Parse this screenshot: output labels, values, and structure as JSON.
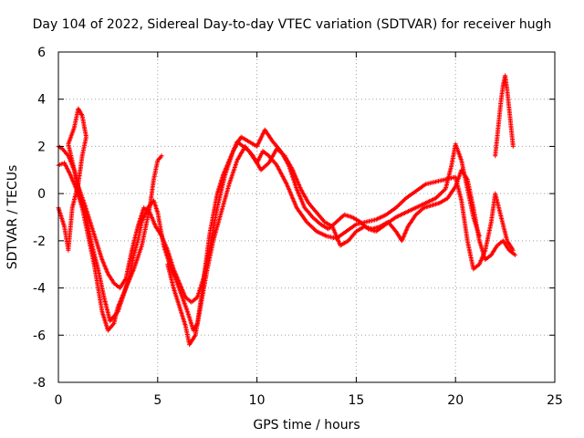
{
  "chart_data": {
    "type": "scatter",
    "title": "Day 104 of 2022, Sidereal Day-to-day VTEC variation (SDTVAR) for receiver hugh",
    "xlabel": "GPS time / hours",
    "ylabel": "SDTVAR / TECUs",
    "xlim": [
      0,
      25
    ],
    "ylim": [
      -8,
      6
    ],
    "x_ticks": [
      "0",
      "5",
      "10",
      "15",
      "20",
      "25"
    ],
    "y_ticks": [
      "-8",
      "-6",
      "-4",
      "-2",
      "0",
      "2",
      "4",
      "6"
    ],
    "x_tick_values": [
      0,
      5,
      10,
      15,
      20,
      25
    ],
    "y_tick_values": [
      -8,
      -6,
      -4,
      -2,
      0,
      2,
      4,
      6
    ],
    "grid": true,
    "marker": "+",
    "color": "#ff0000",
    "series": [
      {
        "name": "trace-a",
        "points": [
          [
            0.0,
            1.2
          ],
          [
            0.3,
            1.3
          ],
          [
            0.6,
            0.8
          ],
          [
            0.9,
            0.2
          ],
          [
            1.2,
            -0.6
          ],
          [
            1.5,
            -1.8
          ],
          [
            1.8,
            -3.0
          ],
          [
            2.0,
            -4.0
          ],
          [
            2.2,
            -5.0
          ],
          [
            2.5,
            -5.8
          ],
          [
            2.8,
            -5.5
          ],
          [
            3.0,
            -4.8
          ],
          [
            3.3,
            -4.2
          ],
          [
            3.6,
            -3.5
          ],
          [
            3.8,
            -2.6
          ],
          [
            4.0,
            -2.0
          ],
          [
            4.2,
            -1.2
          ],
          [
            4.5,
            -0.6
          ],
          [
            4.8,
            -0.3
          ],
          [
            5.0,
            -0.8
          ],
          [
            5.3,
            -2.2
          ],
          [
            5.6,
            -3.0
          ],
          [
            5.9,
            -3.6
          ],
          [
            6.2,
            -4.3
          ],
          [
            6.5,
            -5.0
          ],
          [
            6.8,
            -5.8
          ],
          [
            7.0,
            -5.5
          ],
          [
            7.3,
            -3.8
          ],
          [
            7.6,
            -1.8
          ],
          [
            8.0,
            0.0
          ],
          [
            8.3,
            0.8
          ],
          [
            8.6,
            1.4
          ],
          [
            9.0,
            2.2
          ],
          [
            9.3,
            2.0
          ],
          [
            9.6,
            1.8
          ],
          [
            10.0,
            1.3
          ],
          [
            10.3,
            1.8
          ],
          [
            10.6,
            1.6
          ],
          [
            11.0,
            1.2
          ],
          [
            11.5,
            0.4
          ],
          [
            12.0,
            -0.6
          ],
          [
            12.5,
            -1.2
          ],
          [
            13.0,
            -1.6
          ],
          [
            13.5,
            -1.8
          ],
          [
            14.0,
            -1.9
          ],
          [
            14.5,
            -1.6
          ],
          [
            15.0,
            -1.3
          ],
          [
            15.5,
            -1.2
          ],
          [
            16.0,
            -1.1
          ],
          [
            16.5,
            -0.9
          ],
          [
            17.0,
            -0.6
          ],
          [
            17.5,
            -0.2
          ],
          [
            18.0,
            0.1
          ],
          [
            18.5,
            0.4
          ],
          [
            19.0,
            0.5
          ],
          [
            19.5,
            0.6
          ],
          [
            20.0,
            0.7
          ],
          [
            20.3,
            -0.3
          ],
          [
            20.6,
            -2.0
          ],
          [
            20.9,
            -3.2
          ],
          [
            21.2,
            -3.0
          ],
          [
            21.5,
            -2.4
          ],
          [
            21.8,
            -1.2
          ],
          [
            22.0,
            0.0
          ],
          [
            22.3,
            -1.0
          ],
          [
            22.6,
            -2.0
          ],
          [
            22.9,
            -2.4
          ]
        ]
      },
      {
        "name": "trace-b",
        "points": [
          [
            0.0,
            2.0
          ],
          [
            0.2,
            1.9
          ],
          [
            0.5,
            1.6
          ],
          [
            0.8,
            1.0
          ],
          [
            1.0,
            0.3
          ],
          [
            1.3,
            -0.4
          ],
          [
            1.6,
            -1.2
          ],
          [
            1.9,
            -2.0
          ],
          [
            2.2,
            -2.8
          ],
          [
            2.5,
            -3.4
          ],
          [
            2.8,
            -3.8
          ],
          [
            3.1,
            -4.0
          ],
          [
            3.4,
            -3.6
          ],
          [
            3.7,
            -2.4
          ],
          [
            4.0,
            -1.4
          ],
          [
            4.3,
            -0.6
          ],
          [
            4.6,
            -0.8
          ],
          [
            4.9,
            -1.4
          ],
          [
            5.2,
            -1.8
          ],
          [
            5.5,
            -2.4
          ],
          [
            5.8,
            -3.2
          ],
          [
            6.1,
            -3.8
          ],
          [
            6.4,
            -4.4
          ],
          [
            6.7,
            -4.6
          ],
          [
            7.0,
            -4.4
          ],
          [
            7.3,
            -3.6
          ],
          [
            7.6,
            -2.4
          ],
          [
            8.0,
            -0.6
          ],
          [
            8.4,
            0.8
          ],
          [
            8.8,
            1.8
          ],
          [
            9.2,
            2.4
          ],
          [
            9.6,
            2.2
          ],
          [
            10.0,
            2.0
          ],
          [
            10.4,
            2.7
          ],
          [
            10.8,
            2.2
          ],
          [
            11.2,
            1.8
          ],
          [
            11.6,
            1.2
          ],
          [
            12.0,
            0.2
          ],
          [
            12.4,
            -0.6
          ],
          [
            12.8,
            -1.0
          ],
          [
            13.2,
            -1.3
          ],
          [
            13.6,
            -1.5
          ],
          [
            14.0,
            -1.2
          ],
          [
            14.4,
            -0.9
          ],
          [
            14.8,
            -1.0
          ],
          [
            15.2,
            -1.2
          ],
          [
            15.6,
            -1.5
          ],
          [
            16.0,
            -1.6
          ],
          [
            16.5,
            -1.3
          ],
          [
            17.0,
            -1.0
          ],
          [
            17.5,
            -0.8
          ],
          [
            18.0,
            -0.6
          ],
          [
            18.5,
            -0.4
          ],
          [
            19.0,
            -0.2
          ],
          [
            19.5,
            0.2
          ],
          [
            19.8,
            1.2
          ],
          [
            20.0,
            2.1
          ],
          [
            20.3,
            1.4
          ],
          [
            20.6,
            0.2
          ],
          [
            20.9,
            -1.0
          ],
          [
            21.2,
            -1.8
          ]
        ]
      },
      {
        "name": "trace-c",
        "points": [
          [
            0.0,
            -0.6
          ],
          [
            0.3,
            -1.4
          ],
          [
            0.5,
            -2.4
          ],
          [
            0.7,
            -0.6
          ],
          [
            1.0,
            0.4
          ],
          [
            1.2,
            1.6
          ],
          [
            1.4,
            2.4
          ],
          [
            1.2,
            3.3
          ],
          [
            1.0,
            3.6
          ],
          [
            0.8,
            2.8
          ],
          [
            0.5,
            2.1
          ],
          [
            0.8,
            1.0
          ],
          [
            1.1,
            -0.1
          ],
          [
            1.4,
            -1.0
          ],
          [
            1.7,
            -2.2
          ],
          [
            2.0,
            -3.2
          ],
          [
            2.3,
            -4.4
          ],
          [
            2.6,
            -5.4
          ],
          [
            3.0,
            -5.0
          ],
          [
            3.4,
            -4.0
          ],
          [
            3.8,
            -3.2
          ],
          [
            4.2,
            -2.2
          ],
          [
            4.6,
            -0.6
          ],
          [
            4.8,
            0.6
          ],
          [
            5.0,
            1.4
          ],
          [
            5.2,
            1.6
          ]
        ]
      },
      {
        "name": "trace-d",
        "points": [
          [
            5.5,
            -3.0
          ],
          [
            5.8,
            -4.0
          ],
          [
            6.1,
            -4.8
          ],
          [
            6.4,
            -5.6
          ],
          [
            6.6,
            -6.4
          ],
          [
            6.9,
            -6.0
          ],
          [
            7.2,
            -4.6
          ],
          [
            7.5,
            -3.2
          ],
          [
            7.8,
            -2.0
          ],
          [
            8.2,
            -0.8
          ],
          [
            8.6,
            0.4
          ],
          [
            9.0,
            1.4
          ],
          [
            9.4,
            2.0
          ],
          [
            9.8,
            1.6
          ],
          [
            10.2,
            1.0
          ],
          [
            10.6,
            1.3
          ],
          [
            11.0,
            1.9
          ],
          [
            11.4,
            1.6
          ],
          [
            11.8,
            1.0
          ],
          [
            12.2,
            0.2
          ],
          [
            12.6,
            -0.4
          ],
          [
            13.0,
            -0.8
          ],
          [
            13.4,
            -1.2
          ],
          [
            13.8,
            -1.4
          ],
          [
            14.2,
            -2.2
          ],
          [
            14.6,
            -2.0
          ],
          [
            15.0,
            -1.6
          ],
          [
            15.4,
            -1.4
          ],
          [
            15.8,
            -1.5
          ],
          [
            16.2,
            -1.4
          ],
          [
            16.6,
            -1.2
          ],
          [
            17.0,
            -1.6
          ],
          [
            17.3,
            -2.0
          ],
          [
            17.6,
            -1.4
          ],
          [
            18.0,
            -0.9
          ],
          [
            18.4,
            -0.6
          ],
          [
            18.8,
            -0.5
          ],
          [
            19.2,
            -0.4
          ],
          [
            19.6,
            -0.2
          ],
          [
            20.0,
            0.3
          ],
          [
            20.3,
            1.0
          ],
          [
            20.6,
            0.6
          ],
          [
            20.9,
            -0.6
          ],
          [
            21.2,
            -2.0
          ],
          [
            21.5,
            -2.8
          ],
          [
            21.8,
            -2.6
          ],
          [
            22.1,
            -2.2
          ],
          [
            22.4,
            -2.0
          ],
          [
            22.7,
            -2.4
          ],
          [
            23.0,
            -2.6
          ]
        ]
      },
      {
        "name": "trace-e",
        "points": [
          [
            22.0,
            1.6
          ],
          [
            22.1,
            2.4
          ],
          [
            22.2,
            3.2
          ],
          [
            22.3,
            4.0
          ],
          [
            22.4,
            4.6
          ],
          [
            22.5,
            5.0
          ],
          [
            22.6,
            4.4
          ],
          [
            22.7,
            3.6
          ],
          [
            22.8,
            2.8
          ],
          [
            22.9,
            2.0
          ]
        ]
      }
    ]
  }
}
